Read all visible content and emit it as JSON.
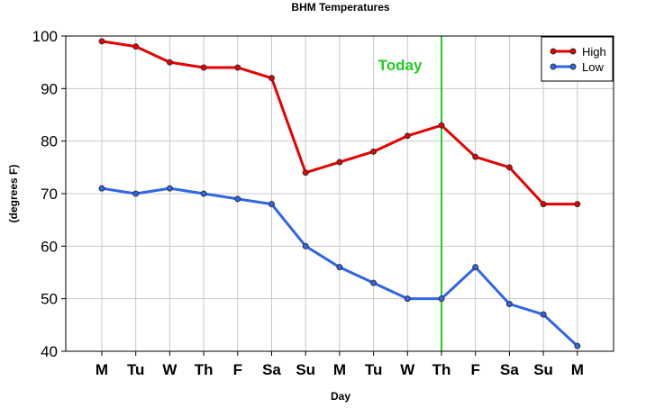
{
  "chart_data": {
    "type": "line",
    "title": "BHM Temperatures",
    "xlabel": "Day",
    "ylabel": "(degrees F)",
    "categories": [
      "M",
      "Tu",
      "W",
      "Th",
      "F",
      "Sa",
      "Su",
      "M",
      "Tu",
      "W",
      "Th",
      "F",
      "Sa",
      "Su",
      "M"
    ],
    "ylim": [
      40,
      100
    ],
    "yticks": [
      40,
      50,
      60,
      70,
      80,
      90,
      100
    ],
    "grid": true,
    "legend_position": "top-right",
    "series": [
      {
        "name": "High",
        "color": "#e60000",
        "values": [
          99,
          98,
          95,
          94,
          94,
          92,
          74,
          76,
          78,
          81,
          83,
          77,
          75,
          68,
          68
        ]
      },
      {
        "name": "Low",
        "color": "#2f66e8",
        "values": [
          71,
          70,
          71,
          70,
          69,
          68,
          60,
          56,
          53,
          50,
          50,
          56,
          49,
          47,
          41
        ]
      }
    ],
    "annotation": {
      "text": "Today",
      "category_index": 10,
      "color": "#22cc22"
    }
  }
}
